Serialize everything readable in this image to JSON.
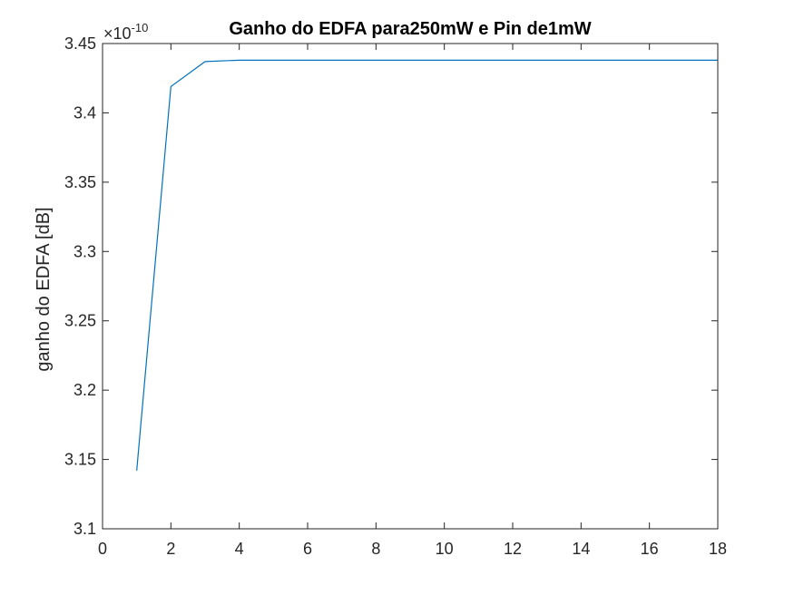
{
  "chart_data": {
    "type": "line",
    "title": "Ganho do EDFA para250mW e Pin de1mW",
    "xlabel": "",
    "ylabel": "ganho do EDFA [dB]",
    "y_exponent_base": "×10",
    "y_exponent_power": "-10",
    "xlim": [
      0,
      18
    ],
    "ylim": [
      3.1,
      3.45
    ],
    "x_ticks": [
      0,
      2,
      4,
      6,
      8,
      10,
      12,
      14,
      16,
      18
    ],
    "x_tick_labels": [
      "0",
      "2",
      "4",
      "6",
      "8",
      "10",
      "12",
      "14",
      "16",
      "18"
    ],
    "y_ticks": [
      3.1,
      3.15,
      3.2,
      3.25,
      3.3,
      3.35,
      3.4,
      3.45
    ],
    "y_tick_labels": [
      "3.1",
      "3.15",
      "3.2",
      "3.25",
      "3.3",
      "3.35",
      "3.4",
      "3.45"
    ],
    "grid": false,
    "line_color": "#0072BD",
    "series": [
      {
        "x": [
          1,
          2,
          3,
          4,
          5,
          6,
          7,
          8,
          9,
          10,
          11,
          12,
          13,
          14,
          15,
          16,
          17,
          18
        ],
        "values": [
          3.142,
          3.419,
          3.437,
          3.438,
          3.438,
          3.438,
          3.438,
          3.438,
          3.438,
          3.438,
          3.438,
          3.438,
          3.438,
          3.438,
          3.438,
          3.438,
          3.438,
          3.438
        ]
      }
    ]
  }
}
